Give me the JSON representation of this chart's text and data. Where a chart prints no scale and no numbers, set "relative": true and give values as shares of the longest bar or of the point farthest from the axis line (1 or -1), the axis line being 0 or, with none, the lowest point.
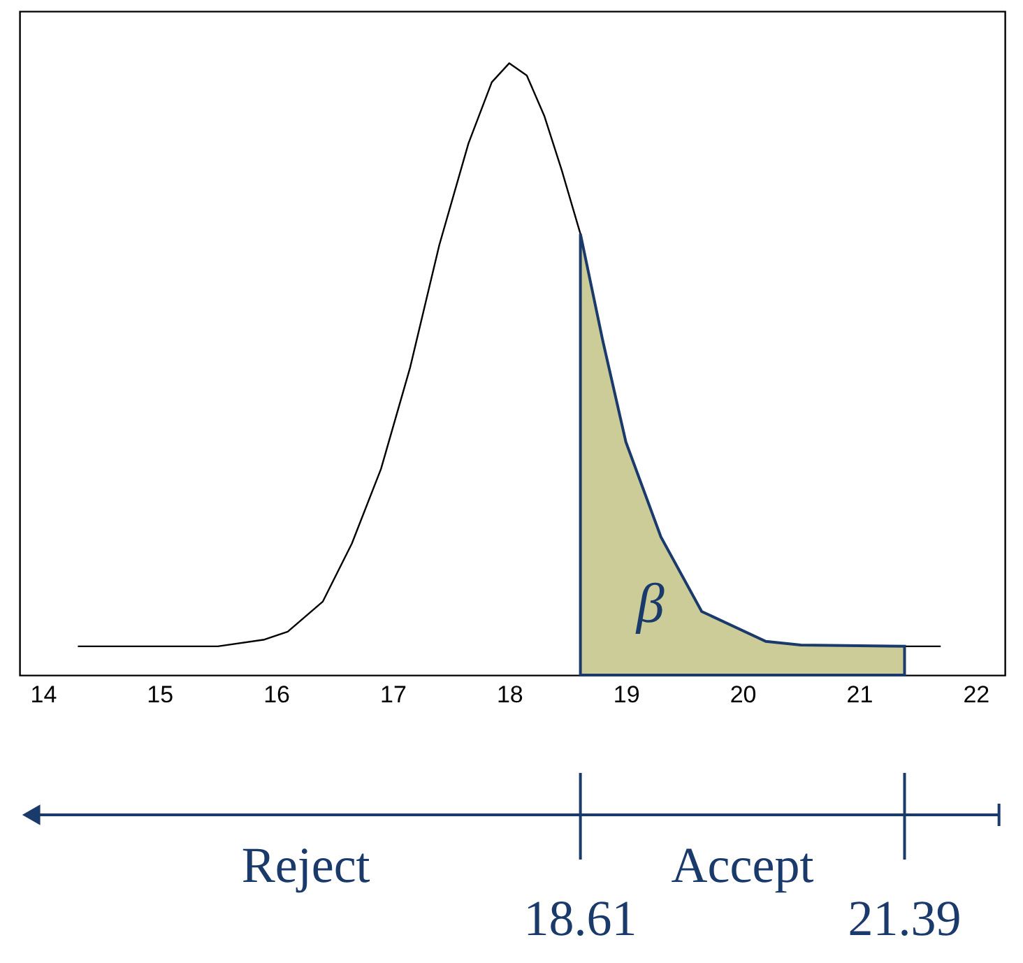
{
  "chart_data": {
    "type": "line",
    "relative": true,
    "xlim": [
      13.8,
      22.25
    ],
    "xticks": [
      14,
      15,
      16,
      17,
      18,
      19,
      20,
      21,
      22
    ],
    "grid": false,
    "series": [
      {
        "color": "#000000",
        "x": [
          14.3,
          15.5,
          15.9,
          16.1,
          16.4,
          16.65,
          16.9,
          17.15,
          17.4,
          17.65,
          17.85,
          18.0,
          18.15,
          18.3,
          18.45,
          18.61,
          18.8,
          19.0,
          19.3,
          19.65,
          20.2,
          20.5,
          21.39,
          21.7
        ],
        "values": [
          0.047,
          0.047,
          0.058,
          0.071,
          0.12,
          0.215,
          0.337,
          0.503,
          0.703,
          0.869,
          0.969,
          1,
          0.98,
          0.914,
          0.825,
          0.721,
          0.548,
          0.381,
          0.226,
          0.104,
          0.055,
          0.049,
          0.047,
          0.047
        ]
      },
      {
        "type": "area",
        "color": "#cccc99",
        "x": [
          18.61,
          18.8,
          19.0,
          19.3,
          19.65,
          20.2,
          20.5,
          21.39
        ],
        "values": [
          0.721,
          0.548,
          0.381,
          0.226,
          0.104,
          0.055,
          0.049,
          0.047
        ]
      }
    ],
    "annotations": [
      "β",
      "Reject",
      "Accept"
    ],
    "ref_lines": [
      {
        "axis": "x",
        "value": 18.61,
        "label": "18.61",
        "color": "#1a3a6b"
      },
      {
        "axis": "x",
        "value": 21.39,
        "label": "21.39",
        "color": "#1a3a6b"
      }
    ]
  }
}
